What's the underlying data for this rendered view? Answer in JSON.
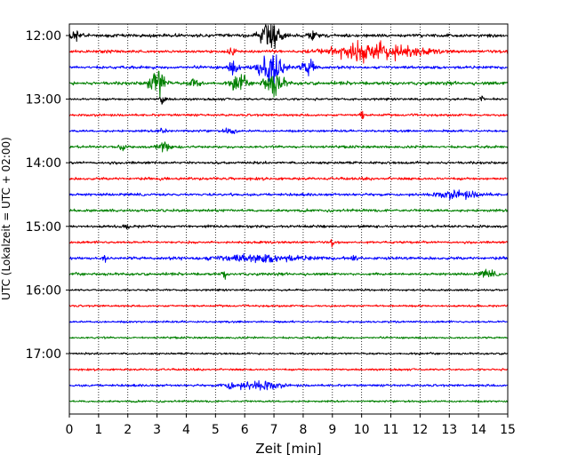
{
  "chart_data": {
    "type": "line",
    "title": "",
    "xlabel": "Zeit  [min]",
    "ylabel": "UTC (Lokalzeit = UTC + 02:00)",
    "xlim": [
      0,
      15
    ],
    "x_ticks": [
      0,
      1,
      2,
      3,
      4,
      5,
      6,
      7,
      8,
      9,
      10,
      11,
      12,
      13,
      14,
      15
    ],
    "x_tick_labels": [
      "0",
      "1",
      "2",
      "3",
      "4",
      "5",
      "6",
      "7",
      "8",
      "9",
      "10",
      "11",
      "12",
      "13",
      "14",
      "15"
    ],
    "y_tick_labels": [
      "12:00",
      "13:00",
      "14:00",
      "15:00",
      "16:00",
      "17:00"
    ],
    "y_tick_traces": [
      0,
      4,
      8,
      12,
      16,
      20
    ],
    "trace_interval_min": 15,
    "grid": "vertical dotted at each minute",
    "color_cycle": [
      "#000000",
      "#ff0000",
      "#0000ff",
      "#008000"
    ],
    "traces": [
      {
        "start": "12:00",
        "color": "#000000",
        "amplitude": 1.0,
        "events": [
          {
            "t": 0.2,
            "amp": 4,
            "dur": 0.3
          },
          {
            "t": 6.9,
            "amp": 10,
            "dur": 0.6
          },
          {
            "t": 8.3,
            "amp": 3,
            "dur": 0.3
          }
        ]
      },
      {
        "start": "12:15",
        "color": "#ff0000",
        "amplitude": 0.9,
        "events": [
          {
            "t": 10.5,
            "amp": 6,
            "dur": 2.6
          },
          {
            "t": 5.6,
            "amp": 2,
            "dur": 0.3
          }
        ]
      },
      {
        "start": "12:30",
        "color": "#0000ff",
        "amplitude": 0.9,
        "events": [
          {
            "t": 6.9,
            "amp": 12,
            "dur": 0.8
          },
          {
            "t": 8.2,
            "amp": 5,
            "dur": 0.4
          },
          {
            "t": 5.6,
            "amp": 4,
            "dur": 0.3
          }
        ]
      },
      {
        "start": "12:45",
        "color": "#008000",
        "amplitude": 1.0,
        "events": [
          {
            "t": 3.0,
            "amp": 9,
            "dur": 0.5
          },
          {
            "t": 5.8,
            "amp": 6,
            "dur": 0.4
          },
          {
            "t": 7.0,
            "amp": 7,
            "dur": 0.6
          },
          {
            "t": 4.3,
            "amp": 3,
            "dur": 0.3
          }
        ]
      },
      {
        "start": "13:00",
        "color": "#000000",
        "amplitude": 0.7,
        "events": [
          {
            "t": 3.2,
            "amp": 3,
            "dur": 0.2
          },
          {
            "t": 14.1,
            "amp": 2,
            "dur": 0.1
          }
        ]
      },
      {
        "start": "13:15",
        "color": "#ff0000",
        "amplitude": 0.7,
        "events": [
          {
            "t": 10.0,
            "amp": 3,
            "dur": 0.1
          }
        ]
      },
      {
        "start": "13:30",
        "color": "#0000ff",
        "amplitude": 0.7,
        "events": [
          {
            "t": 3.2,
            "amp": 2,
            "dur": 0.3
          },
          {
            "t": 5.5,
            "amp": 2,
            "dur": 0.3
          }
        ]
      },
      {
        "start": "13:45",
        "color": "#008000",
        "amplitude": 0.8,
        "events": [
          {
            "t": 1.8,
            "amp": 3,
            "dur": 0.1
          },
          {
            "t": 3.2,
            "amp": 3,
            "dur": 0.4
          }
        ]
      },
      {
        "start": "14:00",
        "color": "#000000",
        "amplitude": 0.8,
        "events": []
      },
      {
        "start": "14:15",
        "color": "#ff0000",
        "amplitude": 0.8,
        "events": []
      },
      {
        "start": "14:30",
        "color": "#0000ff",
        "amplitude": 0.8,
        "events": [
          {
            "t": 13.3,
            "amp": 2,
            "dur": 1.5
          }
        ]
      },
      {
        "start": "14:45",
        "color": "#008000",
        "amplitude": 0.8,
        "events": []
      },
      {
        "start": "15:00",
        "color": "#000000",
        "amplitude": 0.8,
        "events": [
          {
            "t": 2.0,
            "amp": 2,
            "dur": 0.1
          }
        ]
      },
      {
        "start": "15:15",
        "color": "#ff0000",
        "amplitude": 0.7,
        "events": [
          {
            "t": 9.0,
            "amp": 2,
            "dur": 0.1
          }
        ]
      },
      {
        "start": "15:30",
        "color": "#0000ff",
        "amplitude": 0.9,
        "events": [
          {
            "t": 6.5,
            "amp": 2,
            "dur": 3.0
          },
          {
            "t": 9.7,
            "amp": 3,
            "dur": 0.2
          },
          {
            "t": 1.2,
            "amp": 2,
            "dur": 0.1
          }
        ]
      },
      {
        "start": "15:45",
        "color": "#008000",
        "amplitude": 0.8,
        "events": [
          {
            "t": 5.3,
            "amp": 3,
            "dur": 0.1
          },
          {
            "t": 14.3,
            "amp": 2,
            "dur": 0.5
          }
        ]
      },
      {
        "start": "16:00",
        "color": "#000000",
        "amplitude": 0.6,
        "events": []
      },
      {
        "start": "16:15",
        "color": "#ff0000",
        "amplitude": 0.6,
        "events": []
      },
      {
        "start": "16:30",
        "color": "#0000ff",
        "amplitude": 0.6,
        "events": []
      },
      {
        "start": "16:45",
        "color": "#008000",
        "amplitude": 0.6,
        "events": []
      },
      {
        "start": "17:00",
        "color": "#000000",
        "amplitude": 0.6,
        "events": []
      },
      {
        "start": "17:15",
        "color": "#ff0000",
        "amplitude": 0.6,
        "events": []
      },
      {
        "start": "17:30",
        "color": "#0000ff",
        "amplitude": 0.7,
        "events": [
          {
            "t": 6.5,
            "amp": 3,
            "dur": 1.2
          },
          {
            "t": 5.5,
            "amp": 2,
            "dur": 0.5
          }
        ]
      },
      {
        "start": "17:45",
        "color": "#008000",
        "amplitude": 0.6,
        "events": []
      }
    ]
  }
}
